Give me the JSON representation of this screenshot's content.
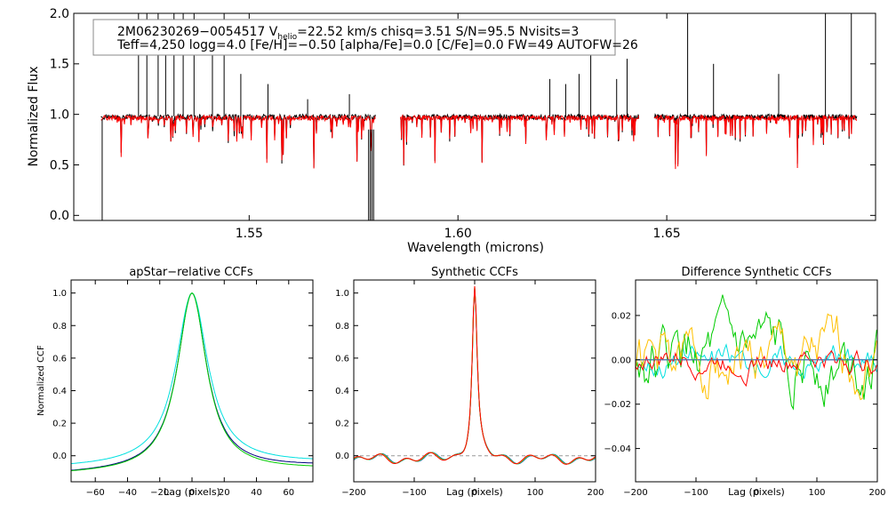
{
  "chart_data": [
    {
      "id": "spectrum",
      "type": "line",
      "xlabel": "Wavelength (microns)",
      "ylabel": "Normalized Flux",
      "xlim": [
        1.508,
        1.7
      ],
      "ylim": [
        -0.05,
        2.0
      ],
      "xticks": [
        1.55,
        1.6,
        1.65
      ],
      "xtick_labels": [
        "1.55",
        "1.60",
        "1.65"
      ],
      "yticks": [
        0.0,
        0.5,
        1.0,
        1.5,
        2.0
      ],
      "ytick_labels": [
        "0.0",
        "0.5",
        "1.0",
        "1.5",
        "2.0"
      ],
      "chips": [
        [
          1.5145,
          1.5802
        ],
        [
          1.5862,
          1.6433
        ],
        [
          1.647,
          1.6955
        ]
      ],
      "series": [
        {
          "color": "#000000"
        },
        {
          "color": "#ff0000"
        }
      ],
      "spike_x": [
        1.5235,
        1.5255,
        1.5282,
        1.53,
        1.532,
        1.5342,
        1.5368,
        1.5412,
        1.544,
        1.548,
        1.5545,
        1.564,
        1.574,
        1.622,
        1.6258,
        1.629,
        1.6318,
        1.638,
        1.6405,
        1.655,
        1.6612,
        1.6768,
        1.688,
        1.6942
      ],
      "spike_y": [
        2.0,
        2.0,
        2.0,
        1.9,
        2.0,
        2.0,
        2.0,
        1.8,
        2.0,
        1.4,
        1.3,
        1.15,
        1.2,
        1.35,
        1.3,
        1.4,
        1.75,
        1.35,
        1.55,
        2.0,
        1.5,
        1.4,
        2.0,
        2.0
      ],
      "info_line1_prefix": "2M06230269−0054517  V",
      "info_line1_sub": "helio",
      "info_line1_suffix": "=22.52 km/s  chisq=3.51  S/N=95.5  Nvisits=3",
      "info_line2": "Teff=4,250 logg=4.0 [Fe/H]=−0.50 [alpha/Fe]=0.0 [C/Fe]=0.0 FW=49 AUTOFW=26"
    },
    {
      "id": "apstar-ccf",
      "type": "line",
      "title": "apStar−relative CCFs",
      "xlabel": "Lag (pixels)",
      "ylabel": "Normalized CCF",
      "xlim": [
        -75,
        75
      ],
      "ylim": [
        -0.16,
        1.08
      ],
      "xticks": [
        -60,
        -40,
        -20,
        0,
        20,
        40,
        60
      ],
      "xtick_labels": [
        "−60",
        "−40",
        "−20",
        "0",
        "20",
        "40",
        "60"
      ],
      "yticks": [
        0.0,
        0.2,
        0.4,
        0.6,
        0.8,
        1.0
      ],
      "ytick_labels": [
        "0.0",
        "0.2",
        "0.4",
        "0.6",
        "0.8",
        "1.0"
      ],
      "series": [
        {
          "color": "#000080",
          "shape": "lorentz",
          "peak": 0.0,
          "amp": 1.09,
          "width": 11,
          "offset": -0.09,
          "slope": 0.0003
        },
        {
          "color": "#00e0e0",
          "shape": "lorentz",
          "peak": 0.0,
          "amp": 1.06,
          "width": 12,
          "offset": -0.06,
          "slope": 0.0002
        },
        {
          "color": "#00cc00",
          "shape": "lorentz",
          "peak": 0.0,
          "amp": 1.1,
          "width": 11,
          "offset": -0.1,
          "slope": 0.0002
        }
      ]
    },
    {
      "id": "synthetic-ccf",
      "type": "line",
      "title": "Synthetic CCFs",
      "xlabel": "Lag (pixels)",
      "xlim": [
        -200,
        200
      ],
      "ylim": [
        -0.16,
        1.08
      ],
      "xticks": [
        -200,
        -100,
        0,
        100,
        200
      ],
      "xtick_labels": [
        "−200",
        "−100",
        "0",
        "100",
        "200"
      ],
      "yticks": [
        0.0,
        0.2,
        0.4,
        0.6,
        0.8,
        1.0
      ],
      "ytick_labels": [
        "0.0",
        "0.2",
        "0.4",
        "0.6",
        "0.8",
        "1.0"
      ],
      "zero_line": 0.0,
      "series": [
        {
          "color": "#000080",
          "phase": 0.0
        },
        {
          "color": "#00e0e0",
          "phase": 0.3
        },
        {
          "color": "#00cc00",
          "phase": 0.6
        },
        {
          "color": "#ffc000",
          "phase": 0.9
        },
        {
          "color": "#ff0000",
          "phase": 1.2
        }
      ]
    },
    {
      "id": "difference-ccf",
      "type": "line",
      "title": "Difference Synthetic CCFs",
      "xlabel": "Lag (pixels)",
      "xlim": [
        -200,
        200
      ],
      "ylim": [
        -0.055,
        0.036
      ],
      "xticks": [
        -200,
        -100,
        0,
        100,
        200
      ],
      "xtick_labels": [
        "−200",
        "−100",
        "0",
        "100",
        "200"
      ],
      "yticks": [
        -0.04,
        -0.02,
        0.0,
        0.02
      ],
      "ytick_labels": [
        "−0.04",
        "−0.02",
        "0.00",
        "0.02"
      ],
      "zero_line": 0.0,
      "series": [
        {
          "color": "#000080",
          "amp": 0.0,
          "seed": 1
        },
        {
          "color": "#00e0e0",
          "amp": 0.008,
          "seed": 2
        },
        {
          "color": "#00cc00",
          "amp": 0.018,
          "seed": 3
        },
        {
          "color": "#ffc000",
          "amp": 0.017,
          "seed": 4
        },
        {
          "color": "#ff0000",
          "amp": 0.007,
          "seed": 5
        }
      ]
    }
  ]
}
